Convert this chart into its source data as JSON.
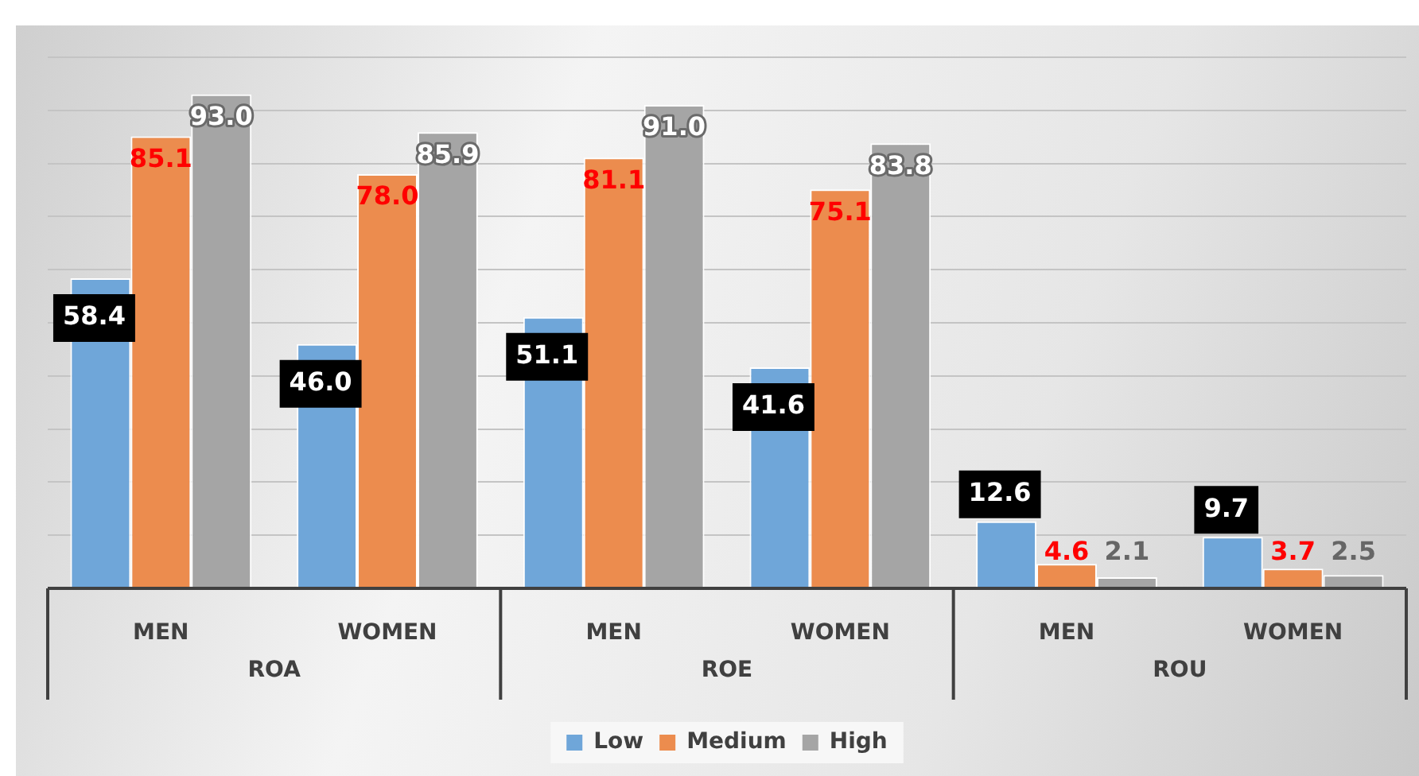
{
  "chart_data": {
    "type": "bar",
    "categories": [
      "MEN",
      "WOMEN",
      "MEN",
      "WOMEN",
      "MEN",
      "WOMEN"
    ],
    "annotations": [
      "ROA",
      "ROE",
      "ROU"
    ],
    "series": [
      {
        "name": "Low",
        "color": "#6fa6d9",
        "values": [
          58.4,
          46.0,
          51.1,
          41.6,
          12.6,
          9.7
        ],
        "value_labels": [
          "58.4",
          "46.0",
          "51.1",
          "41.6",
          "12.6",
          "9.7"
        ]
      },
      {
        "name": "Medium",
        "color": "#ec8c4e",
        "values": [
          85.1,
          78.0,
          81.1,
          75.1,
          4.6,
          3.7
        ],
        "value_labels": [
          "85.1",
          "78.0",
          "81.1",
          "75.1",
          "4.6",
          "3.7"
        ]
      },
      {
        "name": "High",
        "color": "#a5a5a5",
        "values": [
          93.0,
          85.9,
          91.0,
          83.8,
          2.1,
          2.5
        ],
        "value_labels": [
          "93.0",
          "85.9",
          "91.0",
          "83.8",
          "2.1",
          "2.5"
        ]
      }
    ],
    "ylim": [
      0,
      100
    ],
    "yticks": [
      {
        "value": 0,
        "label": null
      },
      {
        "value": 10,
        "label": null
      },
      {
        "value": 20,
        "label": null
      },
      {
        "value": 30,
        "label": null
      },
      {
        "value": 40,
        "label": null
      },
      {
        "value": 50,
        "label": null
      },
      {
        "value": 60,
        "label": null
      },
      {
        "value": 70,
        "label": null
      },
      {
        "value": 80,
        "label": null
      },
      {
        "value": 90,
        "label": null
      },
      {
        "value": 100,
        "label": null
      }
    ],
    "tick_labels": "x",
    "grid": "y",
    "legend": "bottom"
  }
}
